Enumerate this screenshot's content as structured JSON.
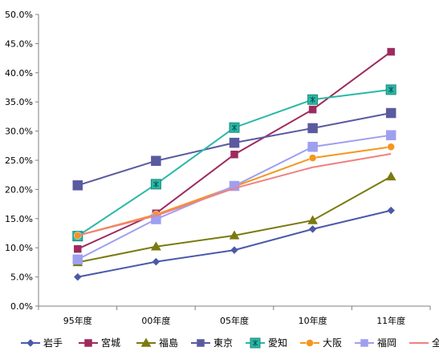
{
  "chart_data": {
    "type": "line",
    "categories": [
      "95年度",
      "00年度",
      "05年度",
      "10年度",
      "11年度"
    ],
    "ylim": [
      0,
      50
    ],
    "yticks": [
      "0.0%",
      "5.0%",
      "10.0%",
      "15.0%",
      "20.0%",
      "25.0%",
      "30.0%",
      "35.0%",
      "40.0%",
      "45.0%",
      "50.0%"
    ],
    "grid": false,
    "legend_position": "bottom",
    "series": [
      {
        "name": "岩手",
        "color": "#4a5aa8",
        "marker": "diamond",
        "values": [
          5.0,
          7.6,
          9.6,
          13.2,
          16.4
        ]
      },
      {
        "name": "宮城",
        "color": "#9e2a5e",
        "marker": "square",
        "values": [
          9.8,
          15.9,
          26.0,
          33.7,
          43.6
        ]
      },
      {
        "name": "福島",
        "color": "#7a7a10",
        "marker": "triangle",
        "values": [
          7.5,
          10.2,
          12.1,
          14.7,
          22.2
        ]
      },
      {
        "name": "東京",
        "color": "#5a5aa0",
        "marker": "square-large",
        "values": [
          20.7,
          24.9,
          28.0,
          30.5,
          33.1
        ]
      },
      {
        "name": "愛知",
        "color": "#2ab8a8",
        "marker": "square-star",
        "values": [
          12.0,
          20.9,
          30.6,
          35.4,
          37.1
        ]
      },
      {
        "name": "大阪",
        "color": "#f5961e",
        "marker": "circle",
        "values": [
          12.1,
          15.7,
          20.5,
          25.4,
          27.3
        ]
      },
      {
        "name": "福岡",
        "color": "#9f9ff0",
        "marker": "square-large",
        "values": [
          8.0,
          14.9,
          20.6,
          27.3,
          29.3
        ]
      },
      {
        "name": "全国",
        "color": "#f08080",
        "marker": "none",
        "values": [
          12.1,
          15.5,
          20.2,
          23.8,
          26.1
        ]
      }
    ]
  }
}
